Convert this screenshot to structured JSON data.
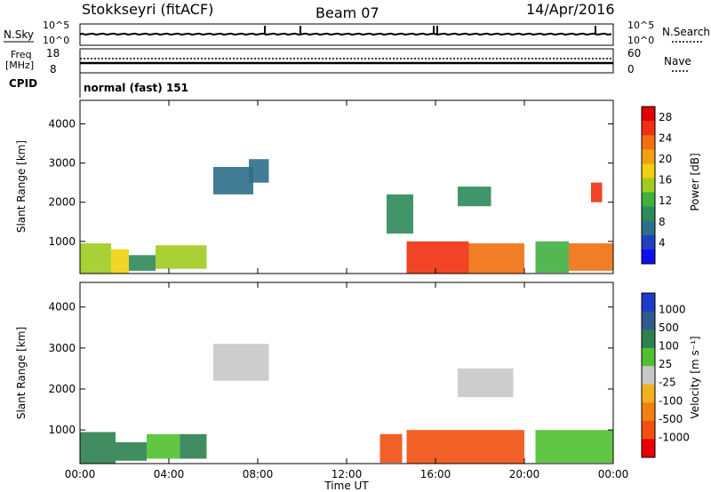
{
  "header": {
    "station": "Stokkseyri (fitACF)",
    "beam": "Beam 07",
    "date": "14/Apr/2016"
  },
  "noise_panel": {
    "left_label": "N.Sky",
    "left_ticks": [
      "10^5",
      "10^0"
    ],
    "right_ticks": [
      "10^5",
      "10^0"
    ],
    "right_label": "N.Search"
  },
  "freq_panel": {
    "left_label_1": "Freq",
    "left_label_2": "[MHz]",
    "left_ticks": [
      "18",
      "8"
    ],
    "right_ticks": [
      "60",
      "0"
    ],
    "right_label": "Nave"
  },
  "cpid_panel": {
    "left_label": "CPID",
    "mode_text": "normal (fast) 151"
  },
  "chart_data": [
    {
      "type": "heatmap",
      "ylabel": "Slant Range [km]",
      "y_ticks": [
        "1000",
        "2000",
        "3000",
        "4000"
      ],
      "ylim": [
        180,
        4600
      ],
      "colorbar_label": "Power [dB]",
      "colorbar_ticks": [
        "4",
        "8",
        "12",
        "16",
        "20",
        "24",
        "28"
      ],
      "colorbar_range": [
        0,
        30
      ],
      "colorbar_colors": [
        "#1010ee",
        "#2040c0",
        "#2e6e8a",
        "#2e8a5a",
        "#40b040",
        "#a0cc20",
        "#f0d010",
        "#f0a010",
        "#f07010",
        "#f03010",
        "#e00000"
      ],
      "regions": [
        {
          "t0": 0.0,
          "t1": 1.4,
          "r0": 180,
          "r1": 950,
          "v": 14
        },
        {
          "t0": 1.4,
          "t1": 2.2,
          "r0": 180,
          "r1": 800,
          "v": 18
        },
        {
          "t0": 2.2,
          "t1": 3.4,
          "r0": 250,
          "r1": 650,
          "v": 10
        },
        {
          "t0": 3.4,
          "t1": 5.7,
          "r0": 300,
          "r1": 900,
          "v": 16
        },
        {
          "t0": 6.0,
          "t1": 7.8,
          "r0": 2200,
          "r1": 2900,
          "v": 8
        },
        {
          "t0": 7.6,
          "t1": 8.5,
          "r0": 2500,
          "r1": 3100,
          "v": 6
        },
        {
          "t0": 13.8,
          "t1": 15.0,
          "r0": 1200,
          "r1": 2200,
          "v": 10
        },
        {
          "t0": 14.7,
          "t1": 17.5,
          "r0": 180,
          "r1": 1000,
          "v": 26
        },
        {
          "t0": 17.5,
          "t1": 20.0,
          "r0": 180,
          "r1": 950,
          "v": 24
        },
        {
          "t0": 17.0,
          "t1": 18.5,
          "r0": 1900,
          "r1": 2400,
          "v": 10
        },
        {
          "t0": 20.5,
          "t1": 22.0,
          "r0": 200,
          "r1": 1000,
          "v": 12
        },
        {
          "t0": 22.0,
          "t1": 24.0,
          "r0": 250,
          "r1": 950,
          "v": 22
        },
        {
          "t0": 23.0,
          "t1": 23.5,
          "r0": 2000,
          "r1": 2500,
          "v": 26
        }
      ]
    },
    {
      "type": "heatmap",
      "ylabel": "Slant Range [km]",
      "y_ticks": [
        "1000",
        "2000",
        "3000",
        "4000"
      ],
      "ylim": [
        180,
        4600
      ],
      "colorbar_label": "Velocity [m s⁻¹]",
      "colorbar_ticks": [
        "1000",
        "500",
        "100",
        "25",
        "-25",
        "-100",
        "-500",
        "-1000"
      ],
      "colorbar_colors": [
        "#1a3cc8",
        "#2e5a90",
        "#2e8050",
        "#50c030",
        "#c8c8c8",
        "#f0b020",
        "#f08010",
        "#f05010",
        "#e80000"
      ],
      "regions": [
        {
          "t0": 0.0,
          "t1": 1.6,
          "r0": 180,
          "r1": 950,
          "v": 100
        },
        {
          "t0": 1.6,
          "t1": 3.0,
          "r0": 250,
          "r1": 700,
          "v": 100
        },
        {
          "t0": 3.0,
          "t1": 4.5,
          "r0": 300,
          "r1": 900,
          "v": 25
        },
        {
          "t0": 4.5,
          "t1": 5.7,
          "r0": 300,
          "r1": 900,
          "v": 100
        },
        {
          "t0": 6.0,
          "t1": 8.5,
          "r0": 2200,
          "r1": 3100,
          "v": 0
        },
        {
          "t0": 13.5,
          "t1": 14.5,
          "r0": 200,
          "r1": 900,
          "v": -500
        },
        {
          "t0": 14.7,
          "t1": 20.0,
          "r0": 180,
          "r1": 1000,
          "v": -500
        },
        {
          "t0": 17.0,
          "t1": 19.5,
          "r0": 1800,
          "r1": 2500,
          "v": 0
        },
        {
          "t0": 20.5,
          "t1": 24.0,
          "r0": 200,
          "r1": 1000,
          "v": 25
        }
      ]
    }
  ],
  "x_ticks": [
    "00:00",
    "04:00",
    "08:00",
    "12:00",
    "16:00",
    "20:00",
    "00:00"
  ],
  "xlabel": "Time UT",
  "xlim": [
    0,
    24
  ]
}
